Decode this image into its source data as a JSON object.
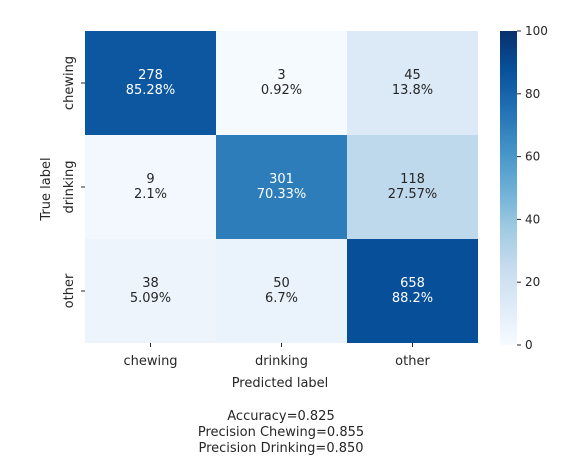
{
  "chart_data": {
    "type": "heatmap",
    "title": "",
    "xlabel": "Predicted label",
    "ylabel": "True label",
    "x_categories": [
      "chewing",
      "drinking",
      "other"
    ],
    "y_categories": [
      "chewing",
      "drinking",
      "other"
    ],
    "values": [
      [
        85.28,
        0.92,
        13.8
      ],
      [
        2.1,
        70.33,
        27.57
      ],
      [
        5.09,
        6.7,
        88.2
      ]
    ],
    "annotations": [
      [
        [
          "278",
          "85.28%"
        ],
        [
          "3",
          "0.92%"
        ],
        [
          "45",
          "13.8%"
        ]
      ],
      [
        [
          "9",
          "2.1%"
        ],
        [
          "301",
          "70.33%"
        ],
        [
          "118",
          "27.57%"
        ]
      ],
      [
        [
          "38",
          "5.09%"
        ],
        [
          "50",
          "6.7%"
        ],
        [
          "658",
          "88.2%"
        ]
      ]
    ],
    "colorbar": {
      "range": [
        0,
        100
      ],
      "ticks": [
        0,
        20,
        40,
        60,
        80,
        100
      ],
      "colormap": "Blues",
      "colors": [
        "#f7fbff",
        "#deebf7",
        "#c6dbef",
        "#9ecae1",
        "#6baed6",
        "#4292c6",
        "#2171b5",
        "#08519c",
        "#08306b"
      ]
    },
    "legend": "none"
  },
  "metrics": [
    "Accuracy=0.825",
    "Precision Chewing=0.855",
    "Precision Drinking=0.850"
  ]
}
